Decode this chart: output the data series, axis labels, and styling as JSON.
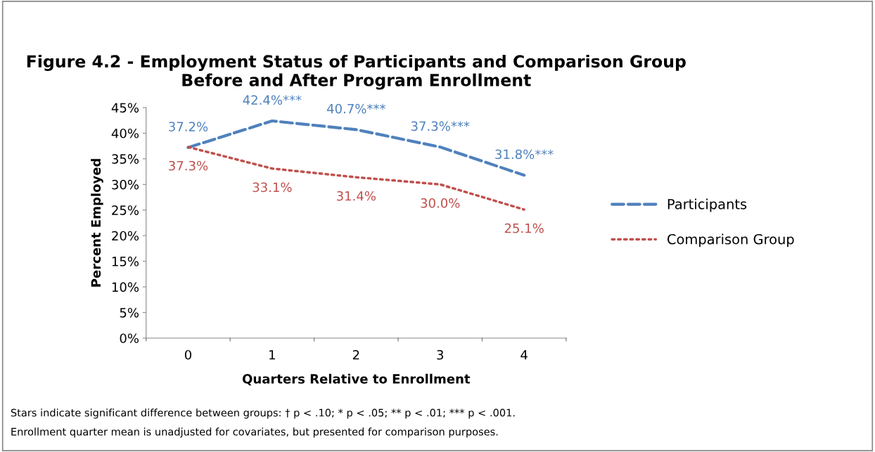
{
  "chart_data": {
    "type": "line",
    "title": "Figure 4.2 - Employment Status of Participants and Comparison Group\nBefore and After Program Enrollment",
    "xlabel": "Quarters Relative to Enrollment",
    "ylabel": "Percent Employed",
    "categories": [
      "0",
      "1",
      "2",
      "3",
      "4"
    ],
    "series": [
      {
        "name": "Participants",
        "color": "#4f81bd",
        "line_style": "dashed",
        "values": [
          37.2,
          42.4,
          40.7,
          37.3,
          31.8
        ],
        "value_labels": [
          "37.2%",
          "42.4%***",
          "40.7%***",
          "37.3%***",
          "31.8%***"
        ]
      },
      {
        "name": "Comparison Group",
        "color": "#c0504d",
        "line_style": "dotted",
        "values": [
          37.3,
          33.1,
          31.4,
          30.0,
          25.1
        ],
        "value_labels": [
          "37.3%",
          "33.1%",
          "31.4%",
          "30.0%",
          "25.1%"
        ]
      }
    ],
    "ylim": [
      0,
      45
    ],
    "yticks": [
      {
        "value": 0,
        "label": "0%"
      },
      {
        "value": 5,
        "label": "5%"
      },
      {
        "value": 10,
        "label": "10%"
      },
      {
        "value": 15,
        "label": "15%"
      },
      {
        "value": 20,
        "label": "20%"
      },
      {
        "value": 25,
        "label": "25%"
      },
      {
        "value": 30,
        "label": "30%"
      },
      {
        "value": 35,
        "label": "35%"
      },
      {
        "value": 40,
        "label": "40%"
      },
      {
        "value": 45,
        "label": "45%"
      }
    ],
    "grid": false,
    "legend": "right",
    "marker": "none",
    "annotations": [
      "Stars indicate significant difference between groups: † p < .10; * p < .05; ** p < .01; *** p < .001.",
      "Enrollment quarter mean is unadjusted for covariates, but presented for comparison purposes."
    ]
  }
}
